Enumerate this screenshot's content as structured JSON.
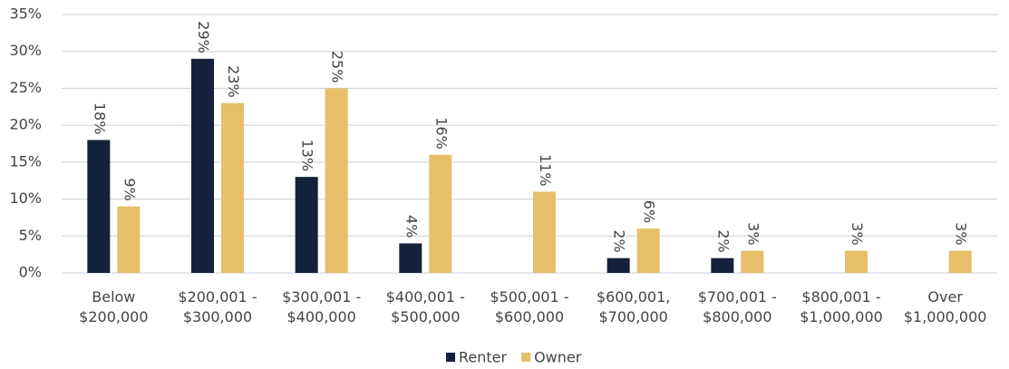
{
  "chart_data": {
    "type": "bar",
    "categories": [
      "Below $200,000",
      "$200,001 - $300,000",
      "$300,001 - $400,000",
      "$400,001 - $500,000",
      "$500,001 - $600,000",
      "$600,001, $700,000",
      "$700,001 - $800,000",
      "$800,001 - $1,000,000",
      "Over $1,000,000"
    ],
    "series": [
      {
        "name": "Renter",
        "color": "#15213b",
        "values": [
          18,
          29,
          13,
          4,
          null,
          2,
          2,
          null,
          null
        ],
        "value_labels": [
          "18%",
          "29%",
          "13%",
          "4%",
          null,
          "2%",
          "2%",
          null,
          null
        ]
      },
      {
        "name": "Owner",
        "color": "#e6bf68",
        "values": [
          9,
          23,
          25,
          16,
          11,
          6,
          3,
          3,
          3
        ],
        "value_labels": [
          "9%",
          "23%",
          "25%",
          "16%",
          "11%",
          "6%",
          "3%",
          "3%",
          "3%"
        ]
      }
    ],
    "ylim": [
      0,
      35
    ],
    "yticks": [
      {
        "value": 0,
        "label": "0%"
      },
      {
        "value": 5,
        "label": "5%"
      },
      {
        "value": 10,
        "label": "10%"
      },
      {
        "value": 15,
        "label": "15%"
      },
      {
        "value": 20,
        "label": "20%"
      },
      {
        "value": 25,
        "label": "25%"
      },
      {
        "value": 30,
        "label": "30%"
      },
      {
        "value": 35,
        "label": "35%"
      }
    ],
    "grid": true,
    "legend": "bottom"
  }
}
